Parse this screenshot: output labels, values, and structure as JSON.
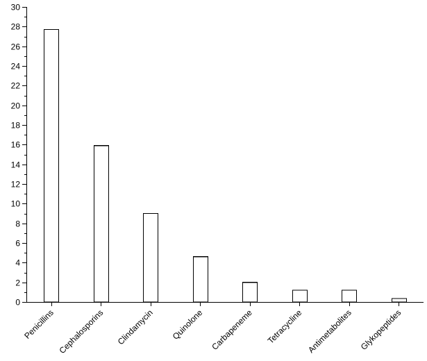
{
  "chart_data": {
    "type": "bar",
    "categories": [
      "Penicillins",
      "Cephalosporins",
      "Clindamycin",
      "Quinolone",
      "Carbapeneme",
      "Tetracycline",
      "Antimetabolites",
      "Glykopeptides"
    ],
    "values": [
      27.7,
      15.9,
      9.0,
      4.6,
      2.0,
      1.2,
      1.2,
      0.35
    ],
    "title": "",
    "xlabel": "",
    "ylabel": "",
    "ylim": [
      0,
      30
    ],
    "yticks": [
      "0",
      "2",
      "4",
      "6",
      "8",
      "10",
      "12",
      "14",
      "16",
      "18",
      "20",
      "22",
      "24",
      "26",
      "28",
      "30"
    ],
    "grid": false,
    "legend": "none"
  }
}
